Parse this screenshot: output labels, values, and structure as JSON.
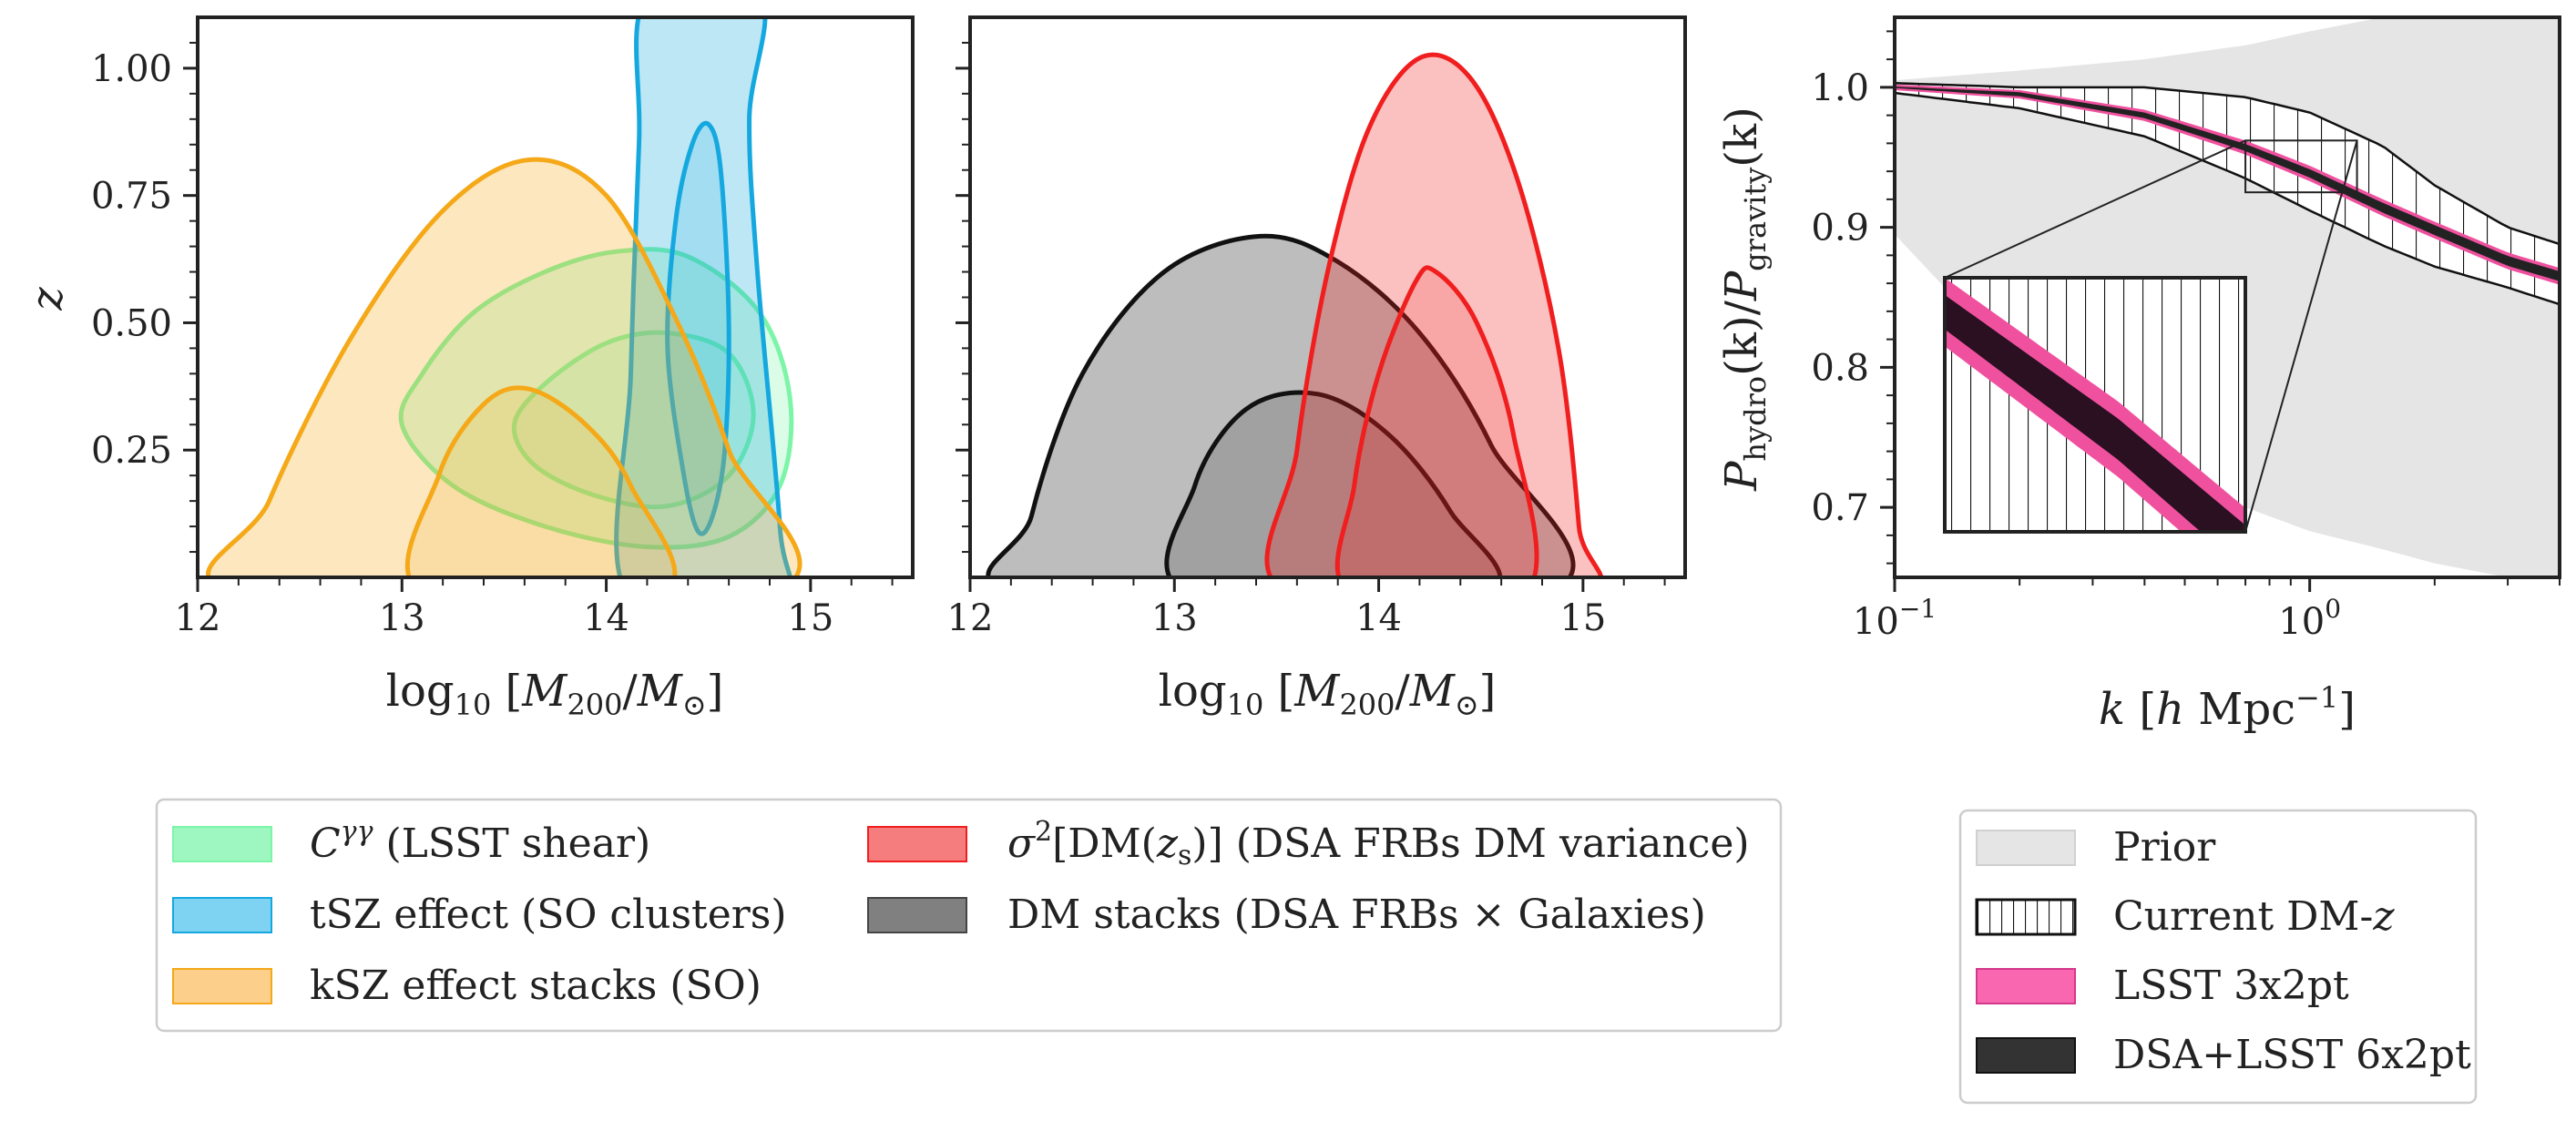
{
  "chart_data": [
    {
      "type": "contour",
      "xlabel_parts": [
        "log",
        "10",
        " [",
        "M",
        "200",
        "/",
        "M",
        "⊙",
        "]"
      ],
      "ylabel": "z",
      "xlim": [
        12,
        15.5
      ],
      "ylim": [
        0,
        1.1
      ],
      "x_ticks": [
        12,
        13,
        14,
        15
      ],
      "x_tick_labels": [
        "12",
        "13",
        "14",
        "15"
      ],
      "y_ticks": [
        0.25,
        0.5,
        0.75,
        1.0
      ],
      "y_tick_labels": [
        "0.25",
        "0.50",
        "0.75",
        "1.00"
      ],
      "series": [
        {
          "legend": "shear",
          "color": "#7cf5a8",
          "contours": [
            [
              [
                13.0,
                0.3
              ],
              [
                13.1,
                0.4
              ],
              [
                13.35,
                0.52
              ],
              [
                13.7,
                0.6
              ],
              [
                14.05,
                0.64
              ],
              [
                14.4,
                0.63
              ],
              [
                14.75,
                0.52
              ],
              [
                14.9,
                0.35
              ],
              [
                14.85,
                0.18
              ],
              [
                14.6,
                0.08
              ],
              [
                14.2,
                0.06
              ],
              [
                13.7,
                0.1
              ],
              [
                13.25,
                0.18
              ]
            ],
            [
              [
                13.55,
                0.3
              ],
              [
                13.7,
                0.38
              ],
              [
                14.0,
                0.46
              ],
              [
                14.3,
                0.48
              ],
              [
                14.6,
                0.44
              ],
              [
                14.72,
                0.32
              ],
              [
                14.6,
                0.2
              ],
              [
                14.3,
                0.14
              ],
              [
                13.95,
                0.16
              ],
              [
                13.65,
                0.22
              ]
            ]
          ]
        },
        {
          "legend": "tsz",
          "color": "#15a8df",
          "contours": [
            [
              [
                14.1,
                0.0
              ],
              [
                14.12,
                0.4
              ],
              [
                14.16,
                0.85
              ],
              [
                14.2,
                1.1
              ],
              [
                14.75,
                1.1
              ],
              [
                14.7,
                0.9
              ],
              [
                14.74,
                0.6
              ],
              [
                14.85,
                0.1
              ],
              [
                14.84,
                0.0
              ]
            ],
            [
              [
                14.45,
                0.09
              ],
              [
                14.38,
                0.2
              ],
              [
                14.3,
                0.45
              ],
              [
                14.34,
                0.7
              ],
              [
                14.42,
                0.85
              ],
              [
                14.5,
                0.89
              ],
              [
                14.56,
                0.8
              ],
              [
                14.6,
                0.5
              ],
              [
                14.58,
                0.25
              ],
              [
                14.52,
                0.12
              ]
            ]
          ]
        },
        {
          "legend": "ksz",
          "color": "#f5a818",
          "contours": [
            [
              [
                12.22,
                0.0
              ],
              [
                12.35,
                0.15
              ],
              [
                12.75,
                0.47
              ],
              [
                13.2,
                0.72
              ],
              [
                13.62,
                0.82
              ],
              [
                14.0,
                0.75
              ],
              [
                14.35,
                0.5
              ],
              [
                14.6,
                0.25
              ],
              [
                14.8,
                0.0
              ]
            ],
            [
              [
                13.1,
                0.0
              ],
              [
                13.18,
                0.2
              ],
              [
                13.4,
                0.34
              ],
              [
                13.62,
                0.37
              ],
              [
                13.9,
                0.3
              ],
              [
                14.12,
                0.18
              ],
              [
                14.28,
                0.0
              ]
            ]
          ]
        },
        {
          "legend": "dm-variance",
          "color": "#f01e1e",
          "contours": [
            [
              [
                13.55,
                0.0
              ],
              [
                13.6,
                0.25
              ],
              [
                13.75,
                0.6
              ],
              [
                13.95,
                0.88
              ],
              [
                14.2,
                1.02
              ],
              [
                14.45,
                0.98
              ],
              [
                14.68,
                0.78
              ],
              [
                14.88,
                0.45
              ],
              [
                14.98,
                0.1
              ],
              [
                14.98,
                0.0
              ]
            ],
            [
              [
                13.86,
                0.0
              ],
              [
                13.88,
                0.18
              ],
              [
                14.0,
                0.4
              ],
              [
                14.18,
                0.58
              ],
              [
                14.28,
                0.6
              ],
              [
                14.48,
                0.5
              ],
              [
                14.66,
                0.28
              ],
              [
                14.72,
                0.0
              ]
            ]
          ]
        },
        {
          "legend": "dm-stacks",
          "color": "#111111",
          "contours": [
            [
              [
                12.28,
                0.0
              ],
              [
                12.3,
                0.12
              ],
              [
                12.55,
                0.4
              ],
              [
                12.95,
                0.6
              ],
              [
                13.42,
                0.67
              ],
              [
                13.8,
                0.62
              ],
              [
                14.2,
                0.48
              ],
              [
                14.55,
                0.26
              ],
              [
                14.82,
                0.0
              ]
            ],
            [
              [
                13.07,
                0.0
              ],
              [
                13.1,
                0.18
              ],
              [
                13.35,
                0.33
              ],
              [
                13.7,
                0.36
              ],
              [
                14.05,
                0.28
              ],
              [
                14.35,
                0.13
              ],
              [
                14.52,
                0.0
              ]
            ]
          ]
        }
      ]
    },
    {
      "type": "area",
      "xscale": "log",
      "xlim": [
        0.1,
        4.0
      ],
      "ylim": [
        0.65,
        1.05
      ],
      "x_ticks": [
        0.1,
        1.0
      ],
      "y_ticks": [
        0.7,
        0.8,
        0.9,
        1.0
      ],
      "y_tick_labels": [
        "0.7",
        "0.8",
        "0.9",
        "1.0"
      ],
      "x_tick_bases": [
        "10",
        "10"
      ],
      "x_tick_exponents": [
        "−1",
        "0"
      ],
      "xlabel_parts": [
        "k",
        " [",
        "h",
        " Mpc",
        "−1",
        "]"
      ],
      "ylabel_parts": [
        "P",
        "hydro",
        "(k)/",
        "P",
        "gravity",
        "(k)"
      ],
      "series": [
        {
          "legend": "prior",
          "color": "#e5e5e5",
          "x": [
            0.1,
            0.2,
            0.4,
            0.7,
            1.0,
            1.5,
            2.0,
            3.0,
            4.0
          ],
          "lower": [
            0.895,
            0.8,
            0.74,
            0.7,
            0.683,
            0.67,
            0.66,
            0.65,
            0.645
          ],
          "upper": [
            1.005,
            1.012,
            1.02,
            1.03,
            1.04,
            1.05,
            1.05,
            1.05,
            1.05
          ]
        },
        {
          "legend": "current",
          "color": "#111111",
          "x": [
            0.1,
            0.2,
            0.4,
            0.7,
            1.0,
            1.5,
            2.0,
            3.0,
            4.0
          ],
          "lower": [
            0.996,
            0.985,
            0.965,
            0.935,
            0.912,
            0.887,
            0.872,
            0.857,
            0.845
          ],
          "upper": [
            1.003,
            1.0,
            1.0,
            0.993,
            0.982,
            0.958,
            0.93,
            0.9,
            0.888
          ]
        },
        {
          "legend": "lsst",
          "color": "#f0519f",
          "x": [
            0.1,
            0.2,
            0.4,
            0.7,
            1.0,
            1.5,
            2.0,
            3.0,
            4.0
          ],
          "lower": [
            0.998,
            0.992,
            0.976,
            0.952,
            0.933,
            0.908,
            0.892,
            0.87,
            0.859
          ],
          "upper": [
            1.002,
            0.998,
            0.984,
            0.962,
            0.944,
            0.92,
            0.904,
            0.882,
            0.871
          ]
        },
        {
          "legend": "dsa-lsst",
          "color": "#111111",
          "x": [
            0.1,
            0.2,
            0.4,
            0.7,
            1.0,
            1.5,
            2.0,
            3.0,
            4.0
          ],
          "lower": [
            0.9995,
            0.9935,
            0.978,
            0.9545,
            0.9355,
            0.9105,
            0.8945,
            0.8725,
            0.8615
          ],
          "upper": [
            1.0005,
            0.9965,
            0.982,
            0.9595,
            0.9415,
            0.9175,
            0.9015,
            0.8795,
            0.8685
          ]
        }
      ],
      "inset_xlim": [
        0.7,
        1.3
      ],
      "inset_ylim": [
        0.925,
        0.962
      ]
    }
  ],
  "legend_left": {
    "shear": {
      "symbol": "C",
      "superscript": "γγ",
      "text": " (LSST shear)",
      "color": "#9ef7c1",
      "edge": "#7cf5a8"
    },
    "tsz": {
      "text": "tSZ effect (SO clusters)",
      "color": "#7fd3f2",
      "edge": "#15a8df"
    },
    "ksz": {
      "text": "kSZ effect stacks (SO)",
      "color": "#fcd08a",
      "edge": "#f5a818"
    },
    "dmvar": {
      "sigma": "σ",
      "sq": "2",
      "open": "[DM(",
      "zs": "z",
      "sub": "s",
      "close": ")]",
      "text": " (DSA FRBs DM variance)",
      "color": "#f67d7d",
      "edge": "#f01e1e"
    },
    "dmstack": {
      "text": "DM stacks (DSA FRBs × Galaxies)",
      "color": "#808080",
      "edge": "#444444"
    }
  },
  "legend_right": {
    "prior": {
      "text": "Prior",
      "color": "#e5e5e5",
      "edge": "#d0d0d0"
    },
    "current": {
      "text_main": "Current DM-",
      "text_italic": "z",
      "color": "#ffffff",
      "edge": "#111111"
    },
    "lsst": {
      "text": "LSST 3x2pt",
      "color": "#f867b0",
      "edge": "#d4388a"
    },
    "dsalsst": {
      "text": "DSA+LSST 6x2pt",
      "color": "#333333",
      "edge": "#111111"
    }
  }
}
